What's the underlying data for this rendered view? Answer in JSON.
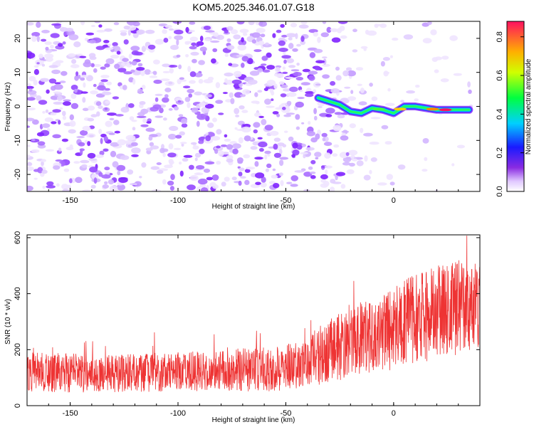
{
  "title": "KOM5.2025.346.01.07.G18",
  "chart_data": [
    {
      "type": "heatmap",
      "xlabel": "Height of straight line (km)",
      "ylabel": "Frequency (Hz)",
      "xlim": [
        -170,
        40
      ],
      "ylim": [
        -25,
        25
      ],
      "xticks": [
        -150,
        -100,
        -50,
        0
      ],
      "yticks": [
        -20,
        -10,
        0,
        10,
        20
      ],
      "grid": false,
      "colorbar": {
        "label": "Normalized spectral amplitude",
        "range": [
          0,
          0.88
        ],
        "ticks": [
          0.0,
          0.2,
          0.4,
          0.6,
          0.8
        ]
      },
      "trace": {
        "description": "strong narrow signal along ~0 Hz from -35 km to 40 km",
        "points": [
          [
            -35,
            2.5
          ],
          [
            -30,
            1.5
          ],
          [
            -25,
            0.5
          ],
          [
            -20,
            -1.5
          ],
          [
            -15,
            -2
          ],
          [
            -10,
            -0.5
          ],
          [
            -5,
            -1
          ],
          [
            0,
            -2
          ],
          [
            5,
            0
          ],
          [
            10,
            0
          ],
          [
            15,
            -0.5
          ],
          [
            20,
            -1
          ],
          [
            25,
            -1
          ],
          [
            30,
            -1
          ],
          [
            35,
            -1
          ]
        ]
      }
    },
    {
      "type": "line",
      "xlabel": "Height of straight line (km)",
      "ylabel": "SNR (10 * v/v)",
      "xlim": [
        -170,
        40
      ],
      "ylim": [
        0,
        610
      ],
      "xticks": [
        -150,
        -100,
        -50,
        0
      ],
      "yticks": [
        0,
        200,
        400,
        600
      ],
      "series": [
        {
          "name": "SNR",
          "color": "#ee3333",
          "trend_x": [
            -170,
            -140,
            -120,
            -100,
            -80,
            -60,
            -40,
            -35,
            -20,
            -10,
            0,
            10,
            20,
            30,
            40
          ],
          "trend_mean": [
            120,
            115,
            118,
            120,
            125,
            130,
            145,
            180,
            230,
            250,
            280,
            310,
            330,
            350,
            360
          ],
          "trend_spread": [
            70,
            70,
            70,
            70,
            75,
            80,
            85,
            110,
            130,
            140,
            150,
            160,
            170,
            170,
            170
          ]
        }
      ]
    }
  ]
}
